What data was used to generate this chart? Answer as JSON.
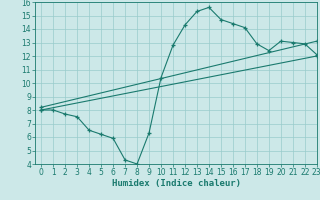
{
  "line1_x": [
    0,
    1,
    2,
    3,
    4,
    5,
    6,
    7,
    8,
    9,
    10,
    11,
    12,
    13,
    14,
    15,
    16,
    17,
    18,
    19,
    20,
    21,
    22,
    23
  ],
  "line1_y": [
    8.0,
    8.0,
    7.7,
    7.5,
    6.5,
    6.2,
    5.9,
    4.3,
    4.0,
    6.3,
    10.4,
    12.8,
    14.3,
    15.3,
    15.6,
    14.7,
    14.4,
    14.1,
    12.9,
    12.4,
    13.1,
    13.0,
    12.9,
    12.1
  ],
  "line2_x": [
    0,
    23
  ],
  "line2_y": [
    8.0,
    12.0
  ],
  "line3_x": [
    0,
    23
  ],
  "line3_y": [
    8.2,
    13.1
  ],
  "line_color": "#1a7a6e",
  "bg_color": "#cce8e8",
  "grid_color": "#99cccc",
  "xlabel": "Humidex (Indice chaleur)",
  "xlim": [
    -0.5,
    23
  ],
  "ylim": [
    4,
    16
  ],
  "xticks": [
    0,
    1,
    2,
    3,
    4,
    5,
    6,
    7,
    8,
    9,
    10,
    11,
    12,
    13,
    14,
    15,
    16,
    17,
    18,
    19,
    20,
    21,
    22,
    23
  ],
  "yticks": [
    4,
    5,
    6,
    7,
    8,
    9,
    10,
    11,
    12,
    13,
    14,
    15,
    16
  ],
  "tick_fontsize": 5.5,
  "xlabel_fontsize": 6.5
}
